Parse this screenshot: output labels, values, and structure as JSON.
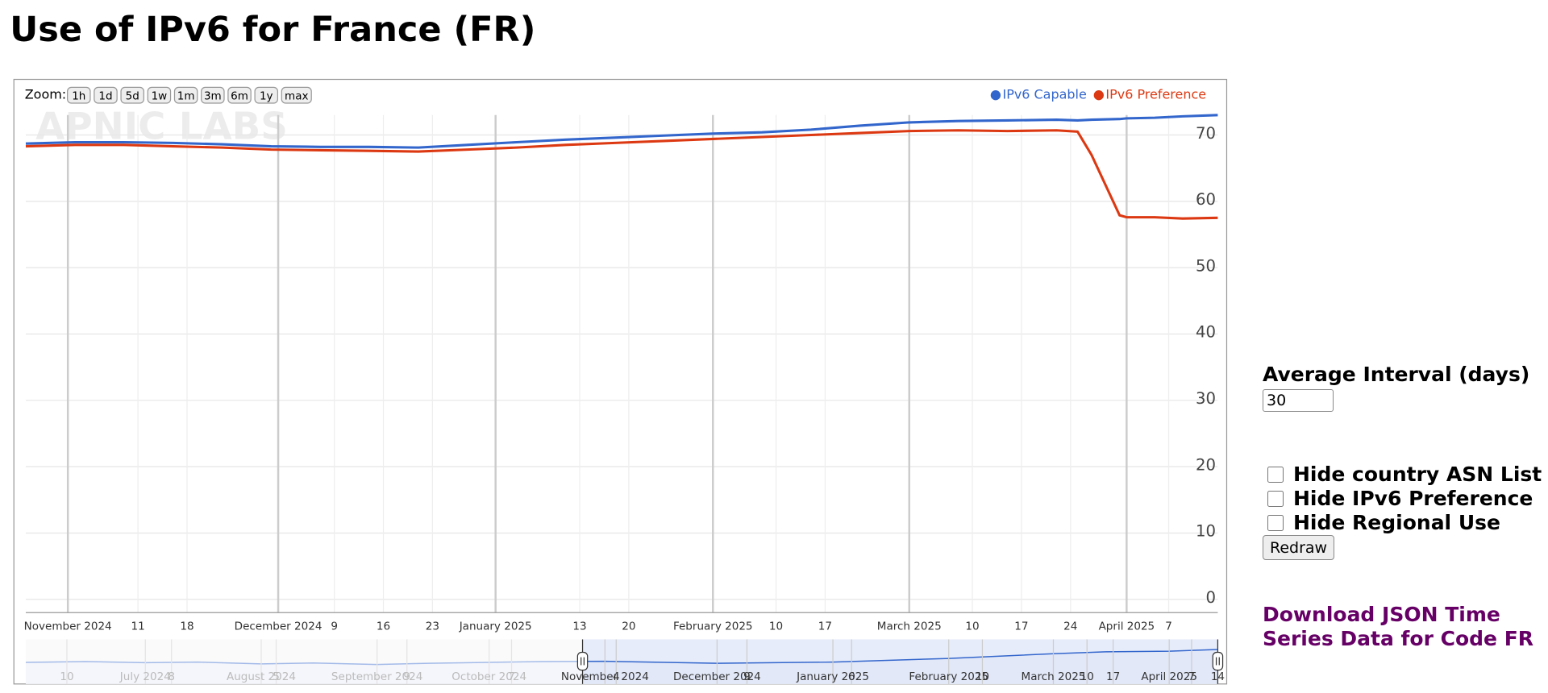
{
  "header": {
    "title": "Use of IPv6 for France (FR)"
  },
  "chart_data": {
    "type": "line",
    "zoom_label": "Zoom:",
    "zoom_buttons": [
      "1h",
      "1d",
      "5d",
      "1w",
      "1m",
      "3m",
      "6m",
      "1y",
      "max"
    ],
    "watermark": "APNIC LABS",
    "x": [
      "2024-10-26",
      "2024-11-02",
      "2024-11-09",
      "2024-11-16",
      "2024-11-23",
      "2024-11-30",
      "2024-12-07",
      "2024-12-14",
      "2024-12-21",
      "2024-12-28",
      "2025-01-04",
      "2025-01-11",
      "2025-01-18",
      "2025-01-25",
      "2025-02-01",
      "2025-02-08",
      "2025-02-15",
      "2025-02-22",
      "2025-03-01",
      "2025-03-08",
      "2025-03-15",
      "2025-03-22",
      "2025-03-25",
      "2025-03-27",
      "2025-03-31",
      "2025-04-01",
      "2025-04-05",
      "2025-04-09",
      "2025-04-14"
    ],
    "series": [
      {
        "name": "IPv6 Capable",
        "color": "#3366cc",
        "values": [
          68.7,
          68.9,
          68.9,
          68.8,
          68.6,
          68.3,
          68.2,
          68.2,
          68.1,
          68.5,
          68.9,
          69.3,
          69.6,
          69.9,
          70.2,
          70.4,
          70.8,
          71.4,
          71.9,
          72.1,
          72.2,
          72.3,
          72.2,
          72.3,
          72.4,
          72.5,
          72.6,
          72.8,
          73.0
        ]
      },
      {
        "name": "IPv6 Preference",
        "color": "#dc3912",
        "values": [
          68.3,
          68.5,
          68.5,
          68.3,
          68.1,
          67.8,
          67.7,
          67.6,
          67.5,
          67.8,
          68.1,
          68.5,
          68.8,
          69.1,
          69.4,
          69.7,
          70.0,
          70.3,
          70.6,
          70.7,
          70.6,
          70.7,
          70.5,
          67.0,
          57.9,
          57.6,
          57.6,
          57.4,
          57.5
        ]
      }
    ],
    "xlim": [
      "2024-10-26",
      "2025-04-14"
    ],
    "xticks": [
      {
        "value": "2024-11-01",
        "label": "November 2024"
      },
      {
        "value": "2024-11-11",
        "label": "11"
      },
      {
        "value": "2024-11-18",
        "label": "18"
      },
      {
        "value": "2024-12-01",
        "label": "December 2024"
      },
      {
        "value": "2024-12-09",
        "label": "9"
      },
      {
        "value": "2024-12-16",
        "label": "16"
      },
      {
        "value": "2024-12-23",
        "label": "23"
      },
      {
        "value": "2025-01-01",
        "label": "January 2025"
      },
      {
        "value": "2025-01-13",
        "label": "13"
      },
      {
        "value": "2025-01-20",
        "label": "20"
      },
      {
        "value": "2025-02-01",
        "label": "February 2025"
      },
      {
        "value": "2025-02-10",
        "label": "10"
      },
      {
        "value": "2025-02-17",
        "label": "17"
      },
      {
        "value": "2025-03-01",
        "label": "March 2025"
      },
      {
        "value": "2025-03-10",
        "label": "10"
      },
      {
        "value": "2025-03-17",
        "label": "17"
      },
      {
        "value": "2025-03-24",
        "label": "24"
      },
      {
        "value": "2025-04-01",
        "label": "April 2025"
      },
      {
        "value": "2025-04-07",
        "label": "7"
      }
    ],
    "ylim": [
      -2,
      73
    ],
    "yticks": [
      0,
      10,
      20,
      30,
      40,
      50,
      60,
      70
    ],
    "grid": true,
    "legend": "top-right",
    "navigator": {
      "xlim": [
        "2024-05-30",
        "2025-04-14"
      ],
      "ylim": [
        61,
        76.5
      ],
      "selection": [
        "2024-10-26",
        "2025-04-14"
      ],
      "x": [
        "2024-05-30",
        "2024-06-15",
        "2024-07-01",
        "2024-07-15",
        "2024-08-01",
        "2024-08-15",
        "2024-09-01",
        "2024-09-15",
        "2024-10-01",
        "2024-10-15",
        "2024-11-01",
        "2024-12-01",
        "2025-01-01",
        "2025-02-01",
        "2025-03-01",
        "2025-03-15",
        "2025-04-01",
        "2025-04-14"
      ],
      "values": [
        68.5,
        68.8,
        68.4,
        68.6,
        68.0,
        68.3,
        67.8,
        68.2,
        68.5,
        68.8,
        68.9,
        68.2,
        68.6,
        69.9,
        71.5,
        72.2,
        72.4,
        73.0
      ],
      "xticks": [
        {
          "value": "2024-06-10",
          "label": "10"
        },
        {
          "value": "2024-07-01",
          "label": "July 2024"
        },
        {
          "value": "2024-07-08",
          "label": "8"
        },
        {
          "value": "2024-08-01",
          "label": "August 2024"
        },
        {
          "value": "2024-08-05",
          "label": "5"
        },
        {
          "value": "2024-09-01",
          "label": "September 2024"
        },
        {
          "value": "2024-09-09",
          "label": "9"
        },
        {
          "value": "2024-10-01",
          "label": "October 2024"
        },
        {
          "value": "2024-10-07",
          "label": "7"
        },
        {
          "value": "2024-11-01",
          "label": "November 2024"
        },
        {
          "value": "2024-11-04",
          "label": "4"
        },
        {
          "value": "2024-12-01",
          "label": "December 2024"
        },
        {
          "value": "2024-12-09",
          "label": "9"
        },
        {
          "value": "2025-01-01",
          "label": "January 2025"
        },
        {
          "value": "2025-01-06",
          "label": "6"
        },
        {
          "value": "2025-02-01",
          "label": "February 2025"
        },
        {
          "value": "2025-02-10",
          "label": "10"
        },
        {
          "value": "2025-03-01",
          "label": "March 2025"
        },
        {
          "value": "2025-03-10",
          "label": "10"
        },
        {
          "value": "2025-03-17",
          "label": "17"
        },
        {
          "value": "2025-04-01",
          "label": "April 2025"
        },
        {
          "value": "2025-04-07",
          "label": "7"
        },
        {
          "value": "2025-04-14",
          "label": "14"
        }
      ]
    }
  },
  "controls": {
    "interval_label": "Average Interval (days)",
    "interval_value": 30,
    "checkboxes": [
      "Hide country ASN List",
      "Hide IPv6 Preference",
      "Hide Regional Use"
    ],
    "redraw": "Redraw"
  },
  "download_link": "Download JSON Time Series Data for Code FR"
}
